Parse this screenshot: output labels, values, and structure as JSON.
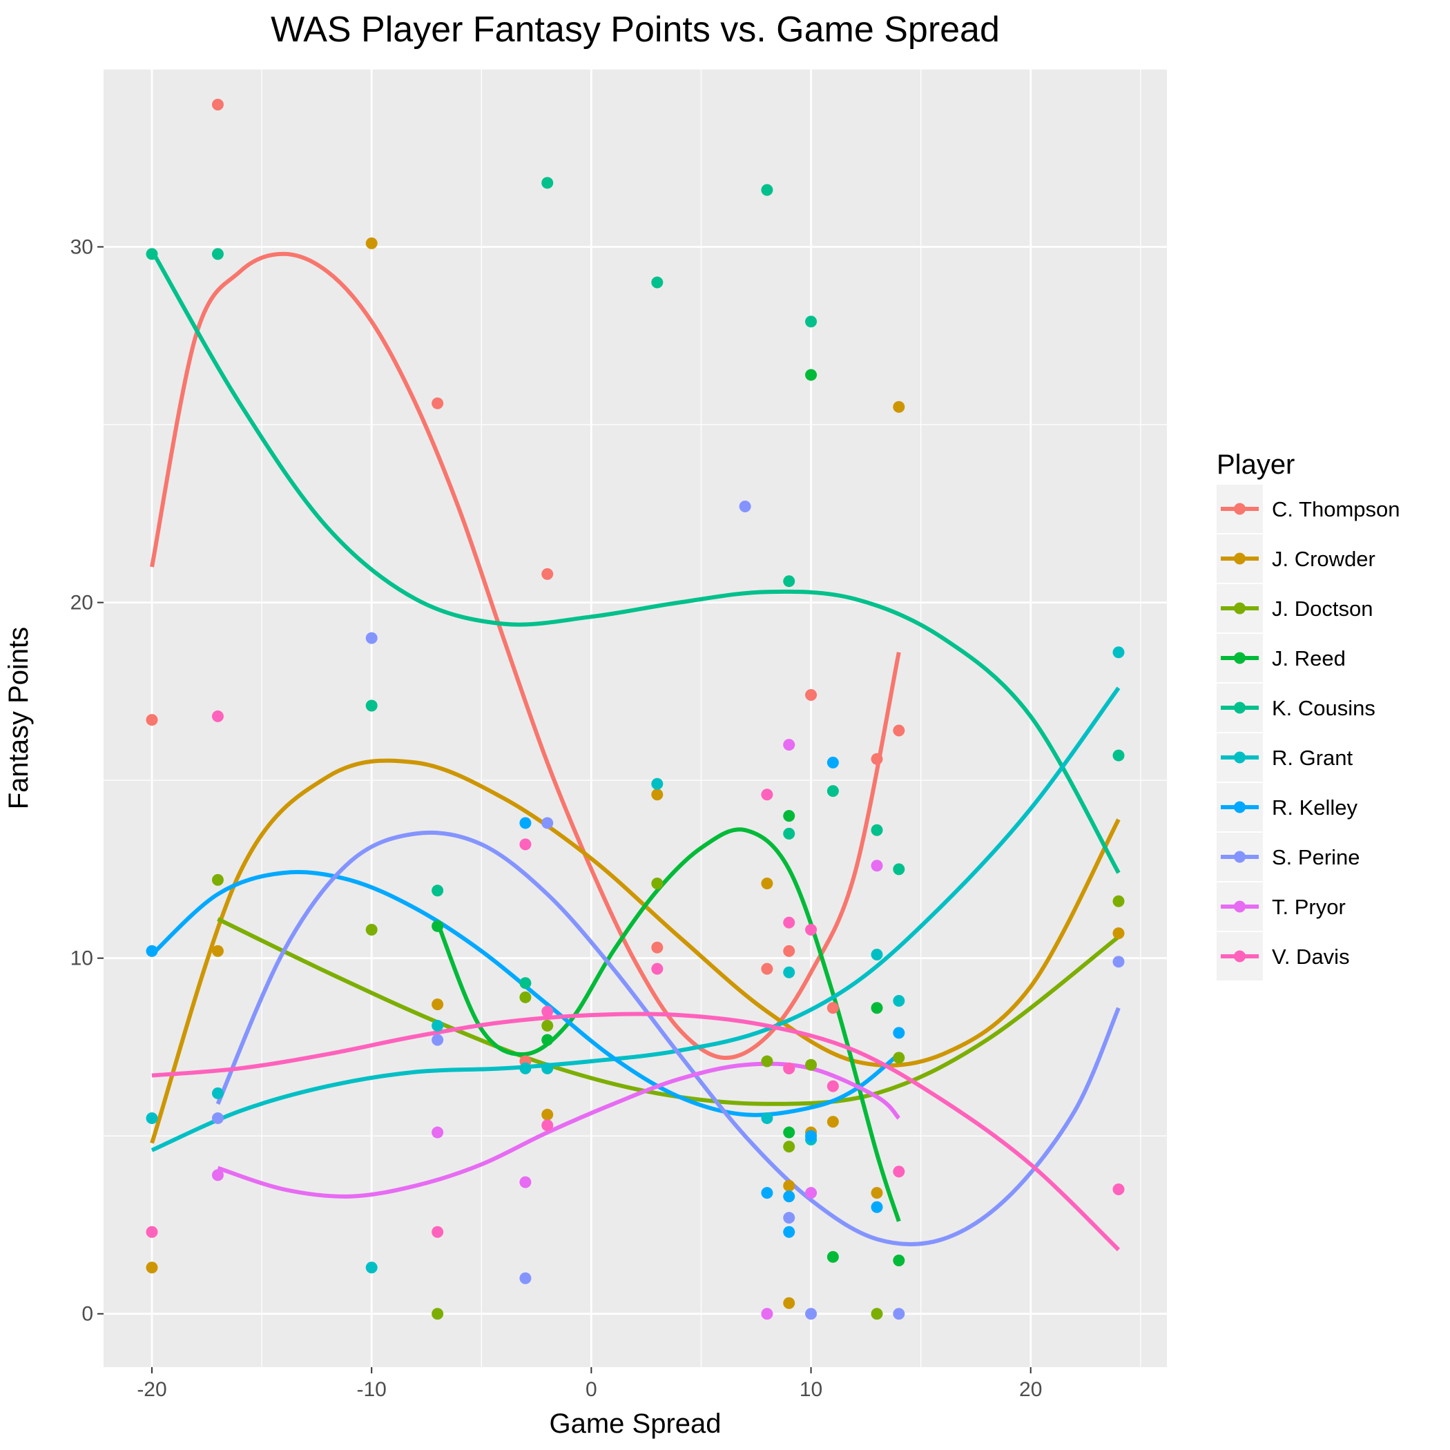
{
  "chart_data": {
    "type": "scatter",
    "title": "WAS Player Fantasy Points vs. Game Spread",
    "xlabel": "Game Spread",
    "ylabel": "Fantasy Points",
    "xlim": [
      -22.2,
      26.2
    ],
    "ylim": [
      -1.5,
      35.0
    ],
    "x_ticks": [
      -20,
      -10,
      0,
      10,
      20
    ],
    "y_ticks": [
      0,
      10,
      20,
      30
    ],
    "grid": true,
    "legend": {
      "title": "Player",
      "position": "right"
    },
    "series": [
      {
        "name": "C. Thompson",
        "color": "#F8766D",
        "points": [
          [
            -20,
            16.7
          ],
          [
            -17,
            34.0
          ],
          [
            -7,
            25.6
          ],
          [
            -3,
            7.1
          ],
          [
            -2,
            20.8
          ],
          [
            3,
            10.3
          ],
          [
            8,
            9.7
          ],
          [
            9,
            10.2
          ],
          [
            10,
            17.4
          ],
          [
            11,
            8.6
          ],
          [
            13,
            15.6
          ],
          [
            14,
            16.4
          ]
        ],
        "fit": [
          [
            -20,
            21.0
          ],
          [
            -18,
            27.5
          ],
          [
            -16,
            29.3
          ],
          [
            -14,
            29.8
          ],
          [
            -12,
            29.3
          ],
          [
            -10,
            27.9
          ],
          [
            -8,
            25.6
          ],
          [
            -6,
            22.6
          ],
          [
            -4,
            19.0
          ],
          [
            -2,
            15.5
          ],
          [
            0,
            12.5
          ],
          [
            2,
            9.9
          ],
          [
            4,
            8.0
          ],
          [
            6,
            7.2
          ],
          [
            8,
            7.8
          ],
          [
            10,
            9.6
          ],
          [
            12,
            12.4
          ],
          [
            14,
            18.6
          ]
        ]
      },
      {
        "name": "J. Crowder",
        "color": "#CD9600",
        "points": [
          [
            -20,
            1.3
          ],
          [
            -17,
            10.2
          ],
          [
            -10,
            30.1
          ],
          [
            -7,
            8.7
          ],
          [
            -2,
            5.6
          ],
          [
            3,
            14.6
          ],
          [
            8,
            12.1
          ],
          [
            9,
            3.6
          ],
          [
            9,
            0.3
          ],
          [
            10,
            5.1
          ],
          [
            11,
            5.4
          ],
          [
            13,
            3.4
          ],
          [
            14,
            25.5
          ],
          [
            24,
            10.7
          ]
        ],
        "fit": [
          [
            -20,
            4.8
          ],
          [
            -16,
            12.4
          ],
          [
            -12,
            15.1
          ],
          [
            -8,
            15.5
          ],
          [
            -4,
            14.5
          ],
          [
            0,
            12.8
          ],
          [
            4,
            10.6
          ],
          [
            8,
            8.5
          ],
          [
            12,
            7.1
          ],
          [
            16,
            7.3
          ],
          [
            20,
            9.2
          ],
          [
            24,
            13.9
          ]
        ]
      },
      {
        "name": "J. Doctson",
        "color": "#7CAE00",
        "points": [
          [
            -17,
            12.2
          ],
          [
            -10,
            10.8
          ],
          [
            -7,
            0.0
          ],
          [
            -3,
            8.9
          ],
          [
            -2,
            8.1
          ],
          [
            3,
            12.1
          ],
          [
            8,
            7.1
          ],
          [
            9,
            4.7
          ],
          [
            10,
            7.0
          ],
          [
            13,
            0.0
          ],
          [
            14,
            7.2
          ],
          [
            24,
            11.6
          ]
        ],
        "fit": [
          [
            -17,
            11.1
          ],
          [
            -12,
            9.6
          ],
          [
            -7,
            8.2
          ],
          [
            -2,
            7.0
          ],
          [
            3,
            6.2
          ],
          [
            8,
            5.9
          ],
          [
            13,
            6.2
          ],
          [
            18,
            7.7
          ],
          [
            24,
            10.6
          ]
        ]
      },
      {
        "name": "J. Reed",
        "color": "#00BA38",
        "points": [
          [
            -7,
            10.9
          ],
          [
            -2,
            7.7
          ],
          [
            9,
            5.1
          ],
          [
            9,
            14.0
          ],
          [
            10,
            26.4
          ],
          [
            11,
            1.6
          ],
          [
            13,
            8.6
          ],
          [
            14,
            1.5
          ]
        ],
        "fit": [
          [
            -7,
            11.0
          ],
          [
            -5,
            8.0
          ],
          [
            -3,
            7.3
          ],
          [
            -1,
            8.2
          ],
          [
            1,
            10.2
          ],
          [
            3,
            11.9
          ],
          [
            5,
            13.1
          ],
          [
            7,
            13.6
          ],
          [
            9,
            12.5
          ],
          [
            11,
            9.0
          ],
          [
            13,
            4.5
          ],
          [
            14,
            2.6
          ]
        ]
      },
      {
        "name": "K. Cousins",
        "color": "#00C08B",
        "points": [
          [
            -20,
            29.8
          ],
          [
            -17,
            29.8
          ],
          [
            -10,
            17.1
          ],
          [
            -7,
            11.9
          ],
          [
            -3,
            9.3
          ],
          [
            -2,
            31.8
          ],
          [
            3,
            29.0
          ],
          [
            8,
            31.6
          ],
          [
            9,
            20.6
          ],
          [
            9,
            13.5
          ],
          [
            10,
            27.9
          ],
          [
            11,
            14.7
          ],
          [
            13,
            13.6
          ],
          [
            14,
            12.5
          ],
          [
            24,
            15.7
          ]
        ],
        "fit": [
          [
            -20,
            29.9
          ],
          [
            -16,
            25.6
          ],
          [
            -12,
            22.1
          ],
          [
            -8,
            20.1
          ],
          [
            -4,
            19.4
          ],
          [
            0,
            19.6
          ],
          [
            4,
            20.0
          ],
          [
            8,
            20.3
          ],
          [
            12,
            20.1
          ],
          [
            16,
            19.0
          ],
          [
            20,
            16.8
          ],
          [
            24,
            12.4
          ]
        ]
      },
      {
        "name": "R. Grant",
        "color": "#00BFC4",
        "points": [
          [
            -20,
            5.5
          ],
          [
            -17,
            6.2
          ],
          [
            -10,
            1.3
          ],
          [
            -7,
            8.1
          ],
          [
            -3,
            6.9
          ],
          [
            -2,
            6.9
          ],
          [
            3,
            14.9
          ],
          [
            8,
            5.5
          ],
          [
            9,
            9.6
          ],
          [
            10,
            4.9
          ],
          [
            13,
            10.1
          ],
          [
            14,
            8.8
          ],
          [
            24,
            18.6
          ]
        ],
        "fit": [
          [
            -20,
            4.6
          ],
          [
            -16,
            5.7
          ],
          [
            -12,
            6.4
          ],
          [
            -8,
            6.8
          ],
          [
            -4,
            6.9
          ],
          [
            0,
            7.1
          ],
          [
            4,
            7.4
          ],
          [
            8,
            8.0
          ],
          [
            12,
            9.3
          ],
          [
            16,
            11.5
          ],
          [
            20,
            14.2
          ],
          [
            24,
            17.6
          ]
        ]
      },
      {
        "name": "R. Kelley",
        "color": "#00A9FF",
        "points": [
          [
            -20,
            10.2
          ],
          [
            -3,
            13.8
          ],
          [
            8,
            3.4
          ],
          [
            9,
            3.3
          ],
          [
            9,
            2.3
          ],
          [
            10,
            5.0
          ],
          [
            11,
            15.5
          ],
          [
            13,
            3.0
          ],
          [
            14,
            7.9
          ]
        ],
        "fit": [
          [
            -20,
            10.1
          ],
          [
            -17,
            11.8
          ],
          [
            -14,
            12.4
          ],
          [
            -11,
            12.2
          ],
          [
            -8,
            11.4
          ],
          [
            -5,
            10.2
          ],
          [
            -2,
            8.7
          ],
          [
            1,
            7.2
          ],
          [
            4,
            6.1
          ],
          [
            7,
            5.6
          ],
          [
            10,
            5.8
          ],
          [
            12,
            6.3
          ],
          [
            14,
            7.3
          ]
        ]
      },
      {
        "name": "S. Perine",
        "color": "#8494FF",
        "points": [
          [
            -17,
            5.5
          ],
          [
            -10,
            19.0
          ],
          [
            -7,
            7.7
          ],
          [
            -3,
            1.0
          ],
          [
            -2,
            13.8
          ],
          [
            7,
            22.7
          ],
          [
            9,
            2.7
          ],
          [
            10,
            0.0
          ],
          [
            14,
            0.0
          ],
          [
            24,
            9.9
          ]
        ],
        "fit": [
          [
            -17,
            5.9
          ],
          [
            -14,
            10.2
          ],
          [
            -11,
            12.7
          ],
          [
            -8,
            13.5
          ],
          [
            -5,
            13.2
          ],
          [
            -2,
            11.8
          ],
          [
            1,
            9.7
          ],
          [
            4,
            7.3
          ],
          [
            7,
            5.0
          ],
          [
            10,
            3.2
          ],
          [
            13,
            2.1
          ],
          [
            16,
            2.1
          ],
          [
            19,
            3.3
          ],
          [
            22,
            5.7
          ],
          [
            24,
            8.6
          ]
        ]
      },
      {
        "name": "T. Pryor",
        "color": "#E76BF3",
        "points": [
          [
            -17,
            3.9
          ],
          [
            -7,
            5.1
          ],
          [
            -3,
            3.7
          ],
          [
            8,
            0.0
          ],
          [
            9,
            16.0
          ],
          [
            9,
            6.9
          ],
          [
            10,
            3.4
          ],
          [
            13,
            12.6
          ]
        ],
        "fit": [
          [
            -17,
            4.1
          ],
          [
            -14,
            3.5
          ],
          [
            -11,
            3.3
          ],
          [
            -8,
            3.6
          ],
          [
            -5,
            4.2
          ],
          [
            -2,
            5.1
          ],
          [
            1,
            5.9
          ],
          [
            4,
            6.6
          ],
          [
            7,
            7.0
          ],
          [
            10,
            6.9
          ],
          [
            13,
            6.1
          ],
          [
            14,
            5.5
          ]
        ]
      },
      {
        "name": "V. Davis",
        "color": "#FF62BC",
        "points": [
          [
            -20,
            2.3
          ],
          [
            -17,
            16.8
          ],
          [
            -7,
            2.3
          ],
          [
            -3,
            13.2
          ],
          [
            -2,
            5.3
          ],
          [
            -2,
            8.5
          ],
          [
            3,
            9.7
          ],
          [
            8,
            14.6
          ],
          [
            9,
            11.0
          ],
          [
            9,
            6.9
          ],
          [
            10,
            10.8
          ],
          [
            11,
            6.4
          ],
          [
            14,
            4.0
          ],
          [
            24,
            3.5
          ]
        ],
        "fit": [
          [
            -20,
            6.7
          ],
          [
            -16,
            6.9
          ],
          [
            -12,
            7.3
          ],
          [
            -8,
            7.8
          ],
          [
            -4,
            8.2
          ],
          [
            0,
            8.4
          ],
          [
            4,
            8.4
          ],
          [
            8,
            8.1
          ],
          [
            12,
            7.4
          ],
          [
            16,
            6.0
          ],
          [
            20,
            4.2
          ],
          [
            24,
            1.8
          ]
        ]
      }
    ]
  }
}
